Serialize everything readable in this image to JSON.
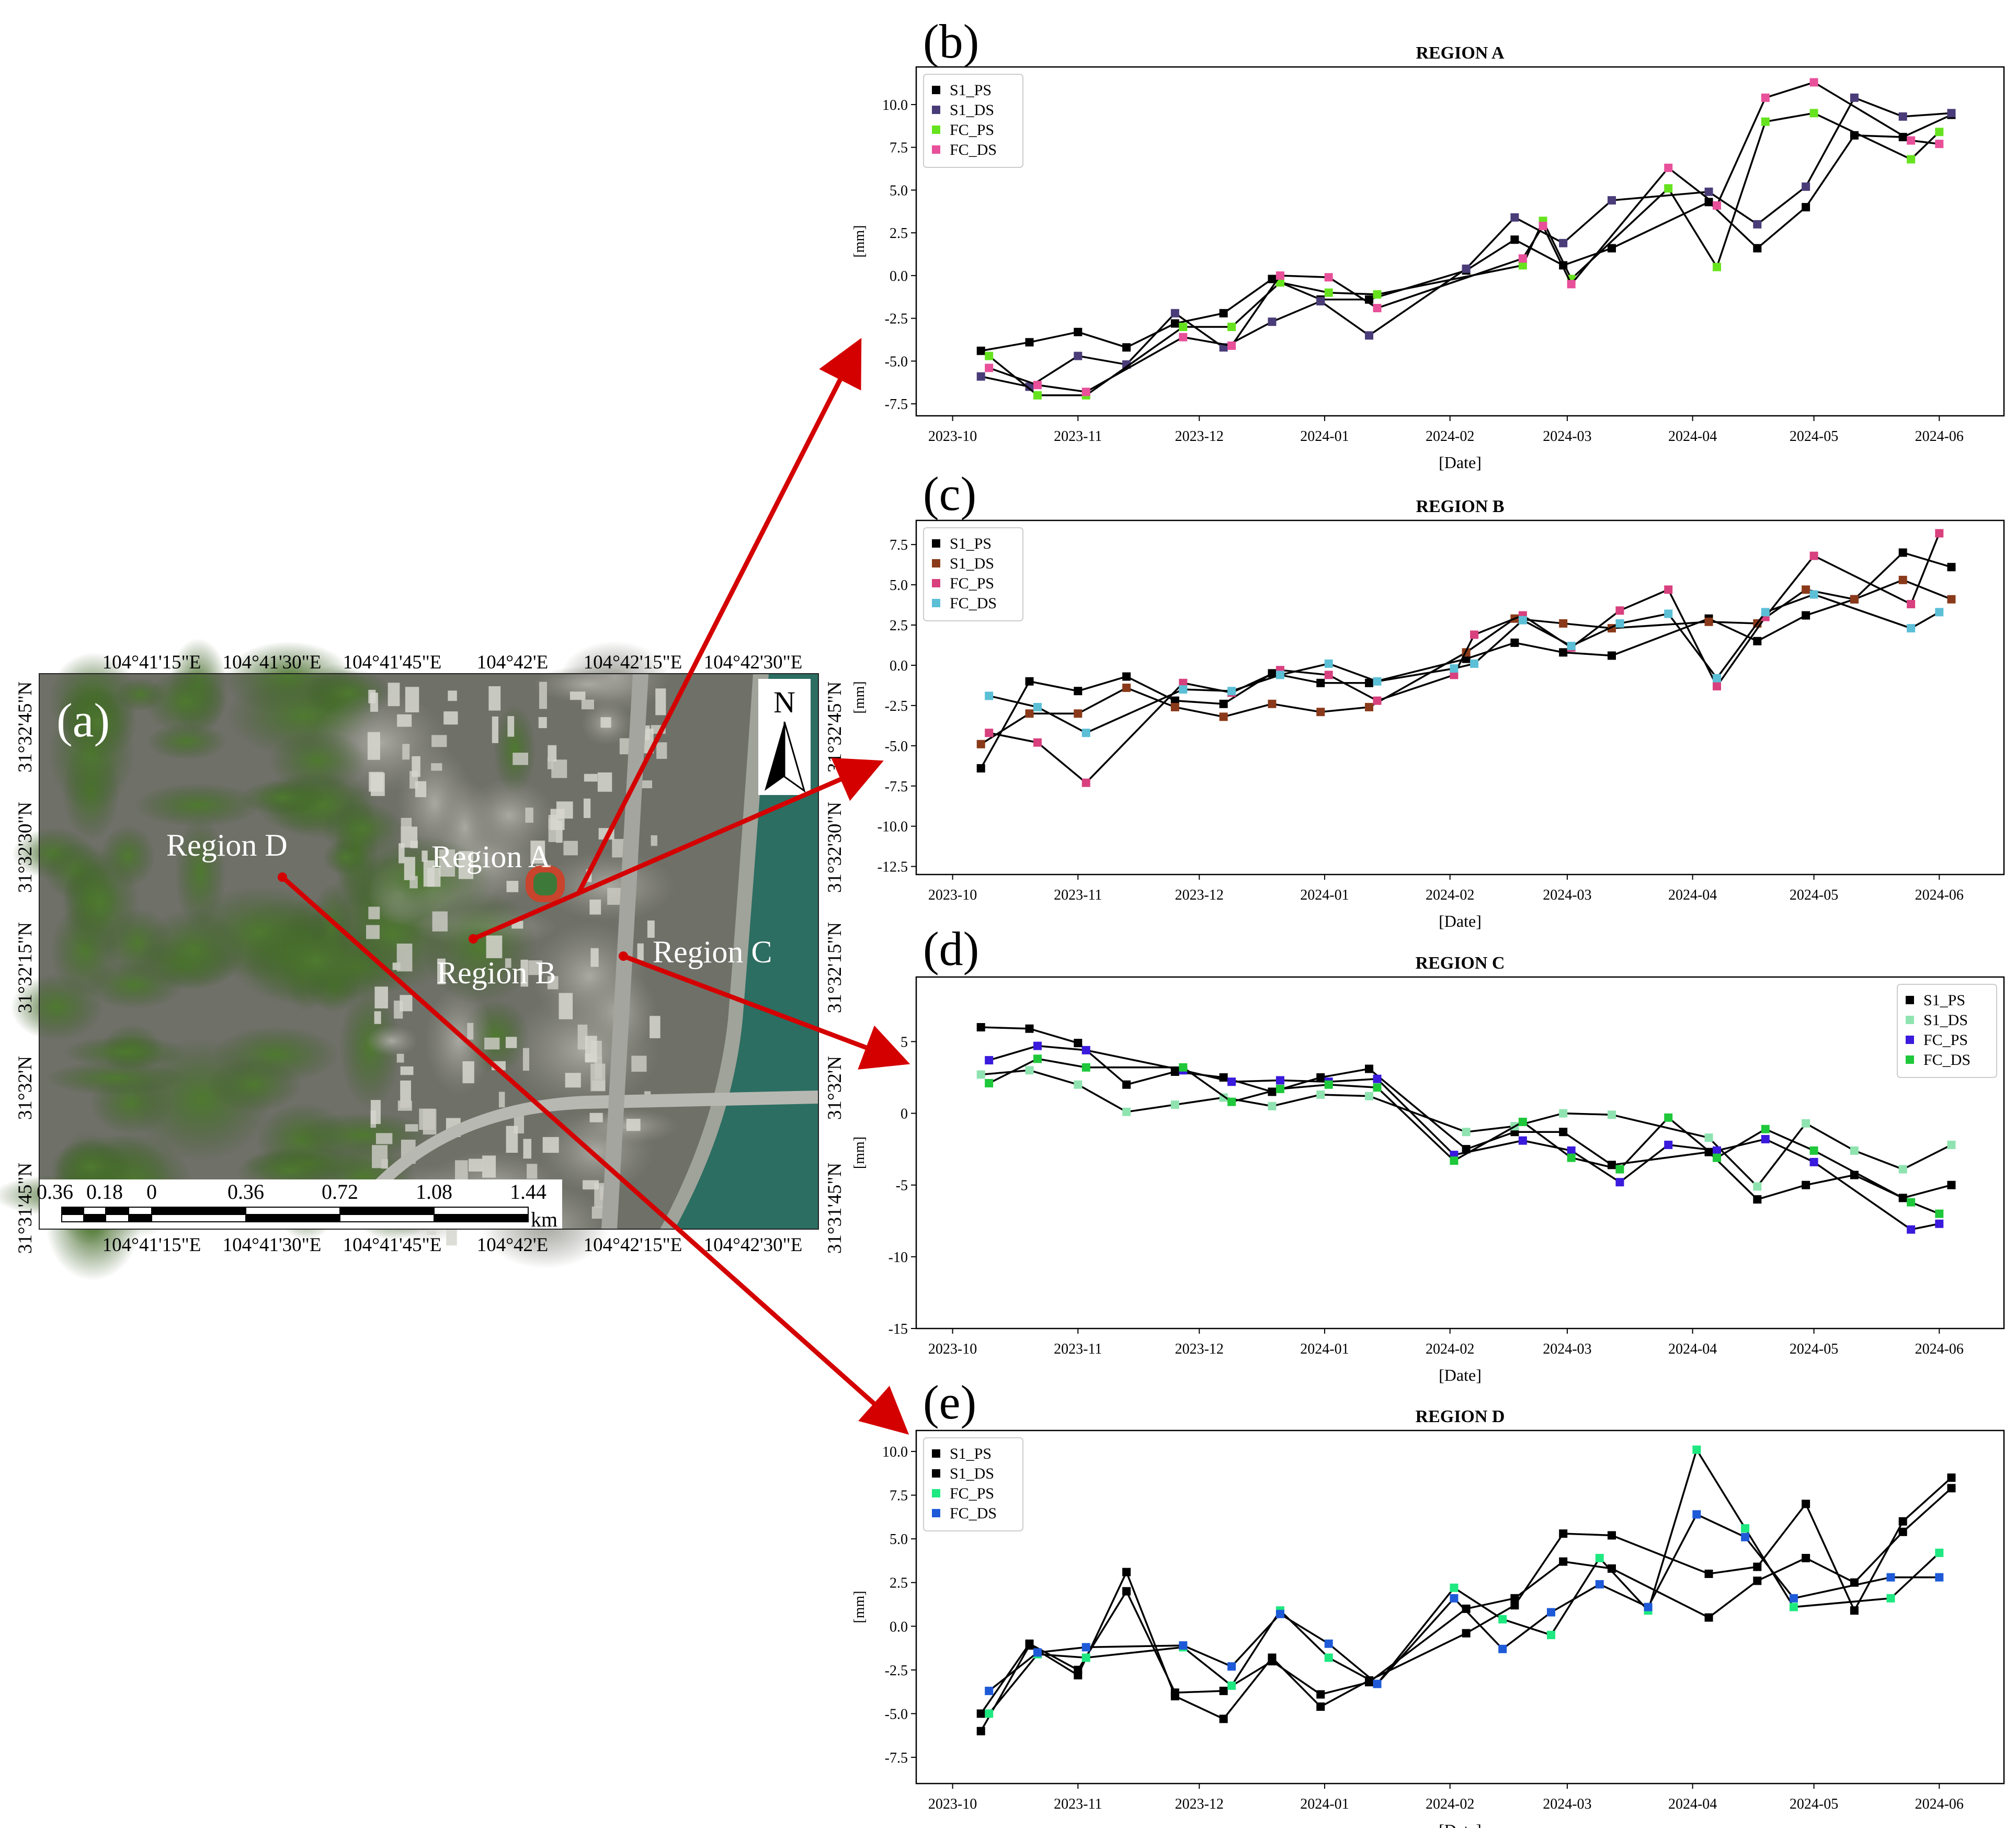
{
  "map": {
    "panel_label": "(a)",
    "north_label": "N",
    "lon_ticks_top": [
      "104°41'15\"E",
      "104°41'30\"E",
      "104°41'45\"E",
      "104°42'E",
      "104°42'15\"E",
      "104°42'30\"E"
    ],
    "lon_ticks_bottom": [
      "104°41'15\"E",
      "104°41'30\"E",
      "104°41'45\"E",
      "104°42'E",
      "104°42'15\"E",
      "104°42'30\"E"
    ],
    "lat_ticks_left": [
      "31°32'45\"N",
      "31°32'30\"N",
      "31°32'15\"N",
      "31°32'N",
      "31°31'45\"N"
    ],
    "lat_ticks_right": [
      "31°32'45\"N",
      "31°32'30\"N",
      "31°32'15\"N",
      "31°32'N",
      "31°31'45\"N"
    ],
    "scale_labels": [
      "0.36",
      "0.18",
      "0",
      "0.36",
      "0.72",
      "1.08",
      "1.44"
    ],
    "scale_unit": "km",
    "regions": [
      "Region A",
      "Region B",
      "Region C",
      "Region D"
    ],
    "colors": {
      "arrow": "#d40000",
      "water": "#2c6e62",
      "vegetation": "#3f5a2a",
      "urban": "#8b8b85"
    }
  },
  "chart_data": [
    {
      "type": "line",
      "panel_label": "(b)",
      "title": "REGION A",
      "xlabel": "[Date]",
      "ylabel": "[mm]",
      "x_ticks": [
        "2023-10",
        "2023-11",
        "2023-12",
        "2024-01",
        "2024-02",
        "2024-03",
        "2024-04",
        "2024-05",
        "2024-06"
      ],
      "ylim": [
        -8.2,
        12.2
      ],
      "y_ticks": [
        -7.5,
        -5.0,
        -2.5,
        0.0,
        2.5,
        5.0,
        7.5,
        10.0
      ],
      "grid": false,
      "legend": "top-left",
      "series": [
        {
          "name": "S1_PS",
          "color": "#000000",
          "x": [
            "2023-10-08",
            "2023-10-20",
            "2023-11-01",
            "2023-11-13",
            "2023-11-25",
            "2023-12-07",
            "2023-12-19",
            "2023-12-31",
            "2024-01-12",
            "2024-02-05",
            "2024-02-17",
            "2024-02-29",
            "2024-03-12",
            "2024-04-05",
            "2024-04-17",
            "2024-04-29",
            "2024-05-11",
            "2024-05-23",
            "2024-06-04"
          ],
          "y": [
            -4.4,
            -3.9,
            -3.3,
            -4.2,
            -2.8,
            -2.2,
            -0.2,
            -1.4,
            -1.4,
            0.3,
            2.1,
            0.6,
            1.6,
            4.3,
            1.6,
            4.0,
            8.2,
            8.1,
            9.4
          ]
        },
        {
          "name": "S1_DS",
          "color": "#4a3c78",
          "x": [
            "2023-10-08",
            "2023-10-20",
            "2023-11-01",
            "2023-11-13",
            "2023-11-25",
            "2023-12-07",
            "2023-12-19",
            "2023-12-31",
            "2024-01-12",
            "2024-02-05",
            "2024-02-17",
            "2024-02-29",
            "2024-03-12",
            "2024-04-05",
            "2024-04-17",
            "2024-04-29",
            "2024-05-11",
            "2024-05-23",
            "2024-06-04"
          ],
          "y": [
            -5.9,
            -6.5,
            -4.7,
            -5.2,
            -2.2,
            -4.2,
            -2.7,
            -1.5,
            -3.5,
            0.4,
            3.4,
            1.9,
            4.4,
            4.9,
            3.0,
            5.2,
            10.4,
            9.3,
            9.5
          ]
        },
        {
          "name": "FC_PS",
          "color": "#66e31e",
          "x": [
            "2023-10-10",
            "2023-10-22",
            "2023-11-03",
            "2023-11-27",
            "2023-12-09",
            "2023-12-21",
            "2024-01-02",
            "2024-01-14",
            "2024-02-19",
            "2024-02-24",
            "2024-03-02",
            "2024-03-26",
            "2024-04-07",
            "2024-04-19",
            "2024-05-01",
            "2024-05-25",
            "2024-06-01"
          ],
          "y": [
            -4.7,
            -7.0,
            -7.0,
            -3.0,
            -3.0,
            -0.4,
            -1.0,
            -1.1,
            0.6,
            3.2,
            -0.2,
            5.1,
            0.5,
            9.0,
            9.5,
            6.8,
            8.4
          ]
        },
        {
          "name": "FC_DS",
          "color": "#e8509a",
          "x": [
            "2023-10-10",
            "2023-10-22",
            "2023-11-03",
            "2023-11-27",
            "2023-12-09",
            "2023-12-21",
            "2024-01-02",
            "2024-01-14",
            "2024-02-19",
            "2024-02-24",
            "2024-03-02",
            "2024-03-26",
            "2024-04-07",
            "2024-04-19",
            "2024-05-01",
            "2024-05-25",
            "2024-06-01"
          ],
          "y": [
            -5.4,
            -6.4,
            -6.8,
            -3.6,
            -4.1,
            0.0,
            -0.1,
            -1.9,
            1.0,
            2.9,
            -0.5,
            6.3,
            4.1,
            10.4,
            11.3,
            7.9,
            7.7
          ]
        }
      ]
    },
    {
      "type": "line",
      "panel_label": "(c)",
      "title": "REGION B",
      "xlabel": "[Date]",
      "ylabel": "[mm]",
      "x_ticks": [
        "2023-10",
        "2023-11",
        "2023-12",
        "2024-01",
        "2024-02",
        "2024-03",
        "2024-04",
        "2024-05",
        "2024-06"
      ],
      "ylim": [
        -13.0,
        9.0
      ],
      "y_ticks": [
        -12.5,
        -10.0,
        -7.5,
        -5.0,
        -2.5,
        0.0,
        2.5,
        5.0,
        7.5
      ],
      "grid": false,
      "legend": "top-left",
      "series": [
        {
          "name": "S1_PS",
          "color": "#000000",
          "x": [
            "2023-10-08",
            "2023-10-20",
            "2023-11-01",
            "2023-11-13",
            "2023-11-25",
            "2023-12-07",
            "2023-12-19",
            "2023-12-31",
            "2024-01-12",
            "2024-02-05",
            "2024-02-17",
            "2024-02-29",
            "2024-03-12",
            "2024-04-05",
            "2024-04-17",
            "2024-04-29",
            "2024-05-11",
            "2024-05-23",
            "2024-06-04"
          ],
          "y": [
            -6.4,
            -1.0,
            -1.6,
            -0.7,
            -2.2,
            -2.4,
            -0.5,
            -1.1,
            -1.1,
            0.4,
            1.4,
            0.8,
            0.6,
            2.9,
            1.5,
            3.1,
            4.1,
            7.0,
            6.1
          ]
        },
        {
          "name": "S1_DS",
          "color": "#8a3a1a",
          "x": [
            "2023-10-08",
            "2023-10-20",
            "2023-11-01",
            "2023-11-13",
            "2023-11-25",
            "2023-12-07",
            "2023-12-19",
            "2023-12-31",
            "2024-01-12",
            "2024-02-05",
            "2024-02-17",
            "2024-02-29",
            "2024-03-12",
            "2024-04-05",
            "2024-04-17",
            "2024-04-29",
            "2024-05-11",
            "2024-05-23",
            "2024-06-04"
          ],
          "y": [
            -4.9,
            -3.0,
            -3.0,
            -1.4,
            -2.6,
            -3.2,
            -2.4,
            -2.9,
            -2.6,
            0.8,
            2.9,
            2.6,
            2.3,
            2.7,
            2.6,
            4.7,
            4.1,
            5.3,
            4.1
          ]
        },
        {
          "name": "FC_PS",
          "color": "#d8407e",
          "x": [
            "2023-10-10",
            "2023-10-22",
            "2023-11-03",
            "2023-11-27",
            "2023-12-09",
            "2023-12-21",
            "2024-01-02",
            "2024-01-14",
            "2024-02-02",
            "2024-02-07",
            "2024-02-19",
            "2024-03-02",
            "2024-03-14",
            "2024-03-26",
            "2024-04-07",
            "2024-04-19",
            "2024-05-01",
            "2024-05-25",
            "2024-06-01"
          ],
          "y": [
            -4.2,
            -4.8,
            -7.3,
            -1.1,
            -1.7,
            -0.3,
            -0.6,
            -2.2,
            -0.6,
            1.9,
            3.1,
            1.1,
            3.4,
            4.7,
            -1.3,
            3.0,
            6.8,
            3.8,
            8.2
          ]
        },
        {
          "name": "FC_DS",
          "color": "#5bbfd6",
          "x": [
            "2023-10-10",
            "2023-10-22",
            "2023-11-03",
            "2023-11-27",
            "2023-12-09",
            "2023-12-21",
            "2024-01-02",
            "2024-01-14",
            "2024-02-02",
            "2024-02-07",
            "2024-02-19",
            "2024-03-02",
            "2024-03-14",
            "2024-03-26",
            "2024-04-07",
            "2024-04-19",
            "2024-05-01",
            "2024-05-25",
            "2024-06-01"
          ],
          "y": [
            -1.9,
            -2.6,
            -4.2,
            -1.5,
            -1.6,
            -0.6,
            0.1,
            -1.0,
            -0.2,
            0.1,
            2.8,
            1.2,
            2.6,
            3.2,
            -0.8,
            3.3,
            4.4,
            2.3,
            3.3
          ]
        }
      ]
    },
    {
      "type": "line",
      "panel_label": "(d)",
      "title": "REGION C",
      "xlabel": "[Date]",
      "ylabel": "[mm]",
      "x_ticks": [
        "2023-10",
        "2023-11",
        "2023-12",
        "2024-01",
        "2024-02",
        "2024-03",
        "2024-04",
        "2024-05",
        "2024-06"
      ],
      "ylim": [
        -15.0,
        9.5
      ],
      "y_ticks": [
        -15,
        -10,
        -5,
        0,
        5
      ],
      "grid": false,
      "legend": "top-right",
      "series": [
        {
          "name": "S1_PS",
          "color": "#000000",
          "x": [
            "2023-10-08",
            "2023-10-20",
            "2023-11-01",
            "2023-11-13",
            "2023-11-25",
            "2023-12-07",
            "2023-12-19",
            "2023-12-31",
            "2024-01-12",
            "2024-02-05",
            "2024-02-17",
            "2024-02-29",
            "2024-03-12",
            "2024-04-05",
            "2024-04-17",
            "2024-04-29",
            "2024-05-11",
            "2024-05-23",
            "2024-06-04"
          ],
          "y": [
            6.0,
            5.9,
            4.9,
            2.0,
            2.9,
            2.5,
            1.5,
            2.5,
            3.1,
            -2.5,
            -1.3,
            -1.3,
            -3.6,
            -2.7,
            -6.0,
            -5.0,
            -4.3,
            -5.9,
            -5.0
          ]
        },
        {
          "name": "S1_DS",
          "color": "#8fe3b0",
          "x": [
            "2023-10-08",
            "2023-10-20",
            "2023-11-01",
            "2023-11-13",
            "2023-11-25",
            "2023-12-07",
            "2023-12-19",
            "2023-12-31",
            "2024-01-12",
            "2024-02-05",
            "2024-02-17",
            "2024-02-29",
            "2024-03-12",
            "2024-04-05",
            "2024-04-17",
            "2024-04-29",
            "2024-05-11",
            "2024-05-23",
            "2024-06-04"
          ],
          "y": [
            2.7,
            3.0,
            2.0,
            0.1,
            0.6,
            1.1,
            0.5,
            1.3,
            1.2,
            -1.3,
            -0.9,
            0.0,
            -0.1,
            -1.7,
            -5.1,
            -0.7,
            -2.6,
            -3.9,
            -2.2
          ]
        },
        {
          "name": "FC_PS",
          "color": "#3a1adc",
          "x": [
            "2023-10-10",
            "2023-10-22",
            "2023-11-03",
            "2023-11-27",
            "2023-12-09",
            "2023-12-21",
            "2024-01-02",
            "2024-01-14",
            "2024-02-02",
            "2024-02-19",
            "2024-03-02",
            "2024-03-14",
            "2024-03-26",
            "2024-04-07",
            "2024-04-19",
            "2024-05-01",
            "2024-05-25",
            "2024-06-01"
          ],
          "y": [
            3.7,
            4.7,
            4.4,
            3.0,
            2.2,
            2.3,
            2.2,
            2.4,
            -2.9,
            -1.9,
            -2.6,
            -4.8,
            -2.2,
            -2.6,
            -1.8,
            -3.4,
            -8.1,
            -7.7
          ]
        },
        {
          "name": "FC_DS",
          "color": "#1ec83a",
          "x": [
            "2023-10-10",
            "2023-10-22",
            "2023-11-03",
            "2023-11-27",
            "2023-12-09",
            "2023-12-21",
            "2024-01-02",
            "2024-01-14",
            "2024-02-02",
            "2024-02-19",
            "2024-03-02",
            "2024-03-14",
            "2024-03-26",
            "2024-04-07",
            "2024-04-19",
            "2024-05-01",
            "2024-05-25",
            "2024-06-01"
          ],
          "y": [
            2.1,
            3.8,
            3.2,
            3.2,
            0.8,
            1.7,
            2.0,
            1.8,
            -3.3,
            -0.6,
            -3.1,
            -3.9,
            -0.3,
            -3.1,
            -1.1,
            -2.6,
            -6.2,
            -7.0
          ]
        }
      ]
    },
    {
      "type": "line",
      "panel_label": "(e)",
      "title": "REGION D",
      "xlabel": "[Date]",
      "ylabel": "[mm]",
      "x_ticks": [
        "2023-10",
        "2023-11",
        "2023-12",
        "2024-01",
        "2024-02",
        "2024-03",
        "2024-04",
        "2024-05",
        "2024-06"
      ],
      "ylim": [
        -9.0,
        11.2
      ],
      "y_ticks": [
        -7.5,
        -5.0,
        -2.5,
        0.0,
        2.5,
        5.0,
        7.5,
        10.0
      ],
      "grid": false,
      "legend": "top-left",
      "series": [
        {
          "name": "S1_PS",
          "color": "#000000",
          "x": [
            "2023-10-08",
            "2023-10-20",
            "2023-11-01",
            "2023-11-13",
            "2023-11-25",
            "2023-12-07",
            "2023-12-19",
            "2023-12-31",
            "2024-01-12",
            "2024-02-05",
            "2024-02-17",
            "2024-02-29",
            "2024-03-12",
            "2024-04-05",
            "2024-04-17",
            "2024-04-29",
            "2024-05-11",
            "2024-05-23",
            "2024-06-04"
          ],
          "y": [
            -6.0,
            -1.1,
            -2.8,
            3.1,
            -4.0,
            -5.3,
            -1.8,
            -4.6,
            -3.1,
            -0.4,
            1.2,
            5.3,
            5.2,
            3.0,
            3.4,
            7.0,
            0.9,
            6.0,
            8.5
          ]
        },
        {
          "name": "S1_DS",
          "color": "#000000",
          "x": [
            "2023-10-08",
            "2023-10-20",
            "2023-11-01",
            "2023-11-13",
            "2023-11-25",
            "2023-12-07",
            "2023-12-19",
            "2023-12-31",
            "2024-01-12",
            "2024-02-05",
            "2024-02-17",
            "2024-02-29",
            "2024-03-12",
            "2024-04-05",
            "2024-04-17",
            "2024-04-29",
            "2024-05-11",
            "2024-05-23",
            "2024-06-04"
          ],
          "y": [
            -5.0,
            -1.0,
            -2.5,
            2.0,
            -3.8,
            -3.7,
            -2.0,
            -3.9,
            -3.2,
            1.0,
            1.6,
            3.7,
            3.3,
            0.5,
            2.6,
            3.9,
            2.5,
            5.4,
            7.9
          ]
        },
        {
          "name": "FC_PS",
          "color": "#1ee880",
          "x": [
            "2023-10-10",
            "2023-10-22",
            "2023-11-03",
            "2023-11-27",
            "2023-12-09",
            "2023-12-21",
            "2024-01-02",
            "2024-01-14",
            "2024-02-02",
            "2024-02-14",
            "2024-02-26",
            "2024-03-09",
            "2024-03-21",
            "2024-04-02",
            "2024-04-14",
            "2024-04-26",
            "2024-05-20",
            "2024-06-01"
          ],
          "y": [
            -5.0,
            -1.6,
            -1.8,
            -1.2,
            -3.4,
            0.9,
            -1.8,
            -3.3,
            2.2,
            0.4,
            -0.5,
            3.9,
            0.9,
            10.1,
            5.6,
            1.1,
            1.6,
            4.2
          ]
        },
        {
          "name": "FC_DS",
          "color": "#1e5ad8",
          "x": [
            "2023-10-10",
            "2023-10-22",
            "2023-11-03",
            "2023-11-27",
            "2023-12-09",
            "2023-12-21",
            "2024-01-02",
            "2024-01-14",
            "2024-02-02",
            "2024-02-14",
            "2024-02-26",
            "2024-03-09",
            "2024-03-21",
            "2024-04-02",
            "2024-04-14",
            "2024-04-26",
            "2024-05-20",
            "2024-06-01"
          ],
          "y": [
            -3.7,
            -1.5,
            -1.2,
            -1.1,
            -2.3,
            0.7,
            -1.0,
            -3.3,
            1.6,
            -1.3,
            0.8,
            2.4,
            1.1,
            6.4,
            5.1,
            1.6,
            2.8,
            2.8
          ]
        }
      ]
    }
  ]
}
